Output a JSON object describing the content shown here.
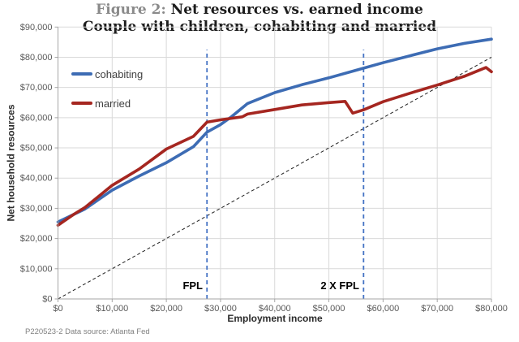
{
  "title": {
    "figure_label": "Figure 2:",
    "main": " Net resources vs. earned income",
    "subtitle": "Couple with children, cohabiting and married"
  },
  "axes": {
    "x_title": "Employment income",
    "y_title": "Net household resources"
  },
  "legend": {
    "items": [
      {
        "label": "cohabiting"
      },
      {
        "label": "married"
      }
    ]
  },
  "annotations": {
    "fpl_label": "FPL",
    "fpl2_label": "2 X FPL"
  },
  "footnote": "P220523-2 Data source: Atlanta Fed",
  "colors": {
    "cohabiting": "#3D6CB4",
    "married": "#A52620",
    "reference_vertical": "#4472C4",
    "diagonal": "#1f1f1f",
    "gridline": "#D9D9D9",
    "axis_line": "#A6A6A6",
    "tick_text": "#595959"
  },
  "chart_data": {
    "type": "line",
    "title": "Figure 2: Net resources vs. earned income",
    "subtitle": "Couple with children, cohabiting and married",
    "xlabel": "Employment income",
    "ylabel": "Net household resources",
    "xlim": [
      0,
      80000
    ],
    "ylim": [
      0,
      90000
    ],
    "x_tick_step": 10000,
    "y_tick_step": 10000,
    "x_tick_labels": [
      "$0",
      "$10,000",
      "$20,000",
      "$30,000",
      "$40,000",
      "$50,000",
      "$60,000",
      "$70,000",
      "$80,000"
    ],
    "y_tick_labels": [
      "$0",
      "$10,000",
      "$20,000",
      "$30,000",
      "$40,000",
      "$50,000",
      "$60,000",
      "$70,000",
      "$80,000",
      "$90,000"
    ],
    "grid": true,
    "legend_position": "inside-top-left",
    "series": [
      {
        "name": "cohabiting",
        "color": "#3D6CB4",
        "points": [
          [
            0,
            25500
          ],
          [
            5000,
            29800
          ],
          [
            10000,
            36000
          ],
          [
            15000,
            40700
          ],
          [
            20000,
            45100
          ],
          [
            25000,
            50400
          ],
          [
            27500,
            55200
          ],
          [
            30000,
            57700
          ],
          [
            32000,
            60300
          ],
          [
            35000,
            64700
          ],
          [
            40000,
            68300
          ],
          [
            45000,
            70900
          ],
          [
            50000,
            73200
          ],
          [
            55000,
            75700
          ],
          [
            60000,
            78200
          ],
          [
            65000,
            80500
          ],
          [
            70000,
            82800
          ],
          [
            75000,
            84600
          ],
          [
            80000,
            86000
          ]
        ]
      },
      {
        "name": "married",
        "color": "#A52620",
        "points": [
          [
            0,
            24400
          ],
          [
            3000,
            28100
          ],
          [
            5000,
            30300
          ],
          [
            10000,
            37600
          ],
          [
            15000,
            43000
          ],
          [
            20000,
            49600
          ],
          [
            25000,
            53800
          ],
          [
            27500,
            58500
          ],
          [
            30000,
            59300
          ],
          [
            34000,
            60300
          ],
          [
            35000,
            61200
          ],
          [
            40000,
            62700
          ],
          [
            45000,
            64200
          ],
          [
            50000,
            65000
          ],
          [
            53000,
            65400
          ],
          [
            54400,
            61500
          ],
          [
            56400,
            62600
          ],
          [
            60000,
            65300
          ],
          [
            65000,
            68100
          ],
          [
            70000,
            70800
          ],
          [
            75000,
            73700
          ],
          [
            79000,
            76600
          ],
          [
            80000,
            75200
          ]
        ]
      }
    ],
    "reference_lines": [
      {
        "type": "diagonal",
        "from": [
          0,
          0
        ],
        "to": [
          80000,
          80000
        ],
        "style": "dashed",
        "color": "#1f1f1f"
      },
      {
        "type": "vertical",
        "label": "FPL",
        "x": 27500,
        "y_top": 82500,
        "style": "dashed",
        "color": "#4472C4"
      },
      {
        "type": "vertical",
        "label": "2 X FPL",
        "x": 56400,
        "y_top": 82500,
        "style": "dashed",
        "color": "#4472C4"
      }
    ]
  }
}
